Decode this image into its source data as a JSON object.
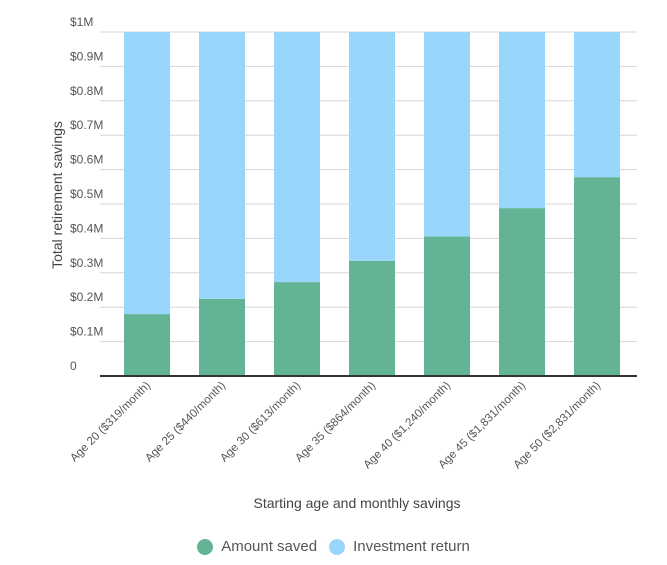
{
  "chart_data": {
    "type": "bar",
    "stacked": true,
    "title": "",
    "xlabel": "Starting age and monthly savings",
    "ylabel": "Total retirement savings",
    "ylim": [
      0,
      1
    ],
    "yticks": [
      0,
      0.1,
      0.2,
      0.3,
      0.4,
      0.5,
      0.6,
      0.7,
      0.8,
      0.9,
      1
    ],
    "ytick_labels": [
      "0",
      "$0.1M",
      "$0.2M",
      "$0.3M",
      "$0.4M",
      "$0.5M",
      "$0.6M",
      "$0.7M",
      "$0.8M",
      "$0.9M",
      "$1M"
    ],
    "grid": true,
    "legend_position": "bottom-center",
    "categories": [
      "Age 20 ($319/month)",
      "Age 25 ($440/month)",
      "Age 30 ($613/month)",
      "Age 35 ($864/month)",
      "Age 40 ($1,240/month)",
      "Age 45 ($1,831/month)",
      "Age 50 ($2,831/month)"
    ],
    "series": [
      {
        "name": "Amount saved",
        "color": "#63b395",
        "values": [
          0.18,
          0.224,
          0.273,
          0.335,
          0.406,
          0.488,
          0.578
        ]
      },
      {
        "name": "Investment return",
        "color": "#99d6fb",
        "values": [
          0.82,
          0.776,
          0.727,
          0.665,
          0.594,
          0.512,
          0.422
        ]
      }
    ]
  }
}
